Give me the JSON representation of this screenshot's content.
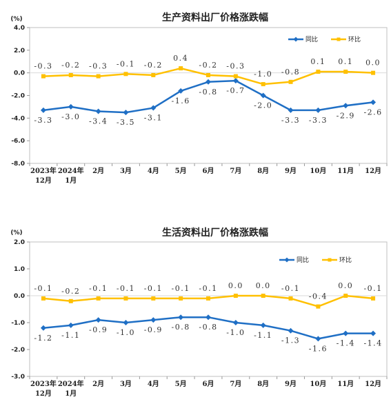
{
  "colors": {
    "yoy": "#1f6fc5",
    "mom": "#ffc000"
  },
  "chart_data": [
    {
      "type": "line",
      "title": "生产资料出厂价格涨跌幅",
      "unit": "(%)",
      "ylim": [
        -8.0,
        4.0
      ],
      "yticks": [
        "4.0",
        "2.0",
        "0.0",
        "-2.0",
        "-4.0",
        "-6.0",
        "-8.0"
      ],
      "ytick_values": [
        4,
        2,
        0,
        -2,
        -4,
        -6,
        -8
      ],
      "categories": [
        [
          "2023年",
          "12月"
        ],
        [
          "2024年",
          "1月"
        ],
        [
          "2月"
        ],
        [
          "3月"
        ],
        [
          "4月"
        ],
        [
          "5月"
        ],
        [
          "6月"
        ],
        [
          "7月"
        ],
        [
          "8月"
        ],
        [
          "9月"
        ],
        [
          "10月"
        ],
        [
          "11月"
        ],
        [
          "12月"
        ]
      ],
      "legend_position": "top-right",
      "series": [
        {
          "name": "同比",
          "values": [
            -3.3,
            -3.0,
            -3.4,
            -3.5,
            -3.1,
            -1.6,
            -0.8,
            -0.7,
            -2.0,
            -3.3,
            -3.3,
            -2.9,
            -2.6
          ],
          "labels": [
            "-3.3",
            "-3.0",
            "-3.4",
            "-3.5",
            "-3.1",
            "-1.6",
            "-0.8",
            "-0.7",
            "-2.0",
            "-3.3",
            "-3.3",
            "-2.9",
            "-2.6"
          ]
        },
        {
          "name": "环比",
          "values": [
            -0.3,
            -0.2,
            -0.3,
            -0.1,
            -0.2,
            0.4,
            -0.2,
            -0.3,
            -1.0,
            -0.8,
            0.1,
            0.1,
            0.0
          ],
          "labels": [
            "-0.3",
            "-0.2",
            "-0.3",
            "-0.1",
            "-0.2",
            "0.4",
            "-0.2",
            "-0.3",
            "-1.0",
            "-0.8",
            "0.1",
            "0.1",
            "0.0"
          ]
        }
      ]
    },
    {
      "type": "line",
      "title": "生活资料出厂价格涨跌幅",
      "unit": "(%)",
      "ylim": [
        -3.0,
        2.0
      ],
      "yticks": [
        "2.0",
        "1.0",
        "0.0",
        "-1.0",
        "-2.0",
        "-3.0"
      ],
      "ytick_values": [
        2,
        1,
        0,
        -1,
        -2,
        -3
      ],
      "categories": [
        [
          "2023年",
          "12月"
        ],
        [
          "2024年",
          "1月"
        ],
        [
          "2月"
        ],
        [
          "3月"
        ],
        [
          "4月"
        ],
        [
          "5月"
        ],
        [
          "6月"
        ],
        [
          "7月"
        ],
        [
          "8月"
        ],
        [
          "9月"
        ],
        [
          "10月"
        ],
        [
          "11月"
        ],
        [
          "12月"
        ]
      ],
      "legend_position": "top-right",
      "series": [
        {
          "name": "同比",
          "values": [
            -1.2,
            -1.1,
            -0.9,
            -1.0,
            -0.9,
            -0.8,
            -0.8,
            -1.0,
            -1.1,
            -1.3,
            -1.6,
            -1.4,
            -1.4
          ],
          "labels": [
            "-1.2",
            "-1.1",
            "-0.9",
            "-1.0",
            "-0.9",
            "-0.8",
            "-0.8",
            "-1.0",
            "-1.1",
            "-1.3",
            "-1.6",
            "-1.4",
            "-1.4"
          ]
        },
        {
          "name": "环比",
          "values": [
            -0.1,
            -0.2,
            -0.1,
            -0.1,
            -0.1,
            -0.1,
            -0.1,
            0.0,
            0.0,
            -0.1,
            -0.4,
            0.0,
            -0.1
          ],
          "labels": [
            "-0.1",
            "-0.2",
            "-0.1",
            "-0.1",
            "-0.1",
            "-0.1",
            "-0.1",
            "0.0",
            "0.0",
            "-0.1",
            "-0.4",
            "0.0",
            "-0.1"
          ]
        }
      ]
    }
  ]
}
